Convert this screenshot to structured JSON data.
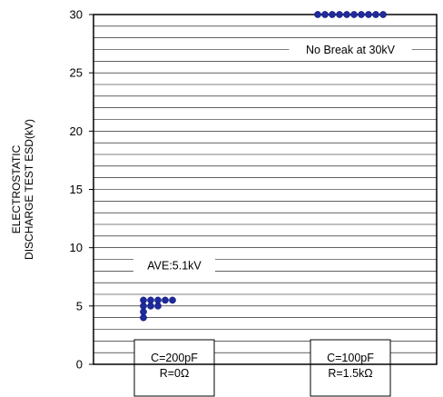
{
  "chart_data": {
    "type": "scatter",
    "ylabel_lines": [
      "ELECTROSTATIC",
      "DISCHARGE TEST ESD(kV)"
    ],
    "ylim": [
      0,
      30
    ],
    "yticks": [
      0,
      5,
      10,
      15,
      20,
      25,
      30
    ],
    "grid": "horizontal",
    "categories": [
      {
        "lines": [
          "C=200pF",
          "R=0Ω"
        ]
      },
      {
        "lines": [
          "C=100pF",
          "R=1.5kΩ"
        ]
      }
    ],
    "series": [
      {
        "color": "#1f2a9c",
        "points": [
          {
            "cat": 0,
            "offset": 0,
            "y": 4.0
          },
          {
            "cat": 0,
            "offset": 0,
            "y": 4.5
          },
          {
            "cat": 0,
            "offset": 0,
            "y": 5.0
          },
          {
            "cat": 0,
            "offset": 0,
            "y": 5.5
          },
          {
            "cat": 0,
            "offset": 1,
            "y": 5.0
          },
          {
            "cat": 0,
            "offset": 1,
            "y": 5.5
          },
          {
            "cat": 0,
            "offset": 2,
            "y": 5.0
          },
          {
            "cat": 0,
            "offset": 2,
            "y": 5.5
          },
          {
            "cat": 0,
            "offset": 3,
            "y": 5.5
          },
          {
            "cat": 0,
            "offset": 4,
            "y": 5.5
          },
          {
            "cat": 1,
            "offset": -4.5,
            "y": 30
          },
          {
            "cat": 1,
            "offset": -3.5,
            "y": 30
          },
          {
            "cat": 1,
            "offset": -2.5,
            "y": 30
          },
          {
            "cat": 1,
            "offset": -1.5,
            "y": 30
          },
          {
            "cat": 1,
            "offset": -0.5,
            "y": 30
          },
          {
            "cat": 1,
            "offset": 0.5,
            "y": 30
          },
          {
            "cat": 1,
            "offset": 1.5,
            "y": 30
          },
          {
            "cat": 1,
            "offset": 2.5,
            "y": 30
          },
          {
            "cat": 1,
            "offset": 3.5,
            "y": 30
          },
          {
            "cat": 1,
            "offset": 4.5,
            "y": 30
          }
        ]
      }
    ],
    "annotations": [
      {
        "text": "AVE:5.1kV",
        "cat": 0,
        "y": 8.5
      },
      {
        "text": "No Break at 30kV",
        "cat": 1,
        "y": 27.0
      }
    ]
  }
}
